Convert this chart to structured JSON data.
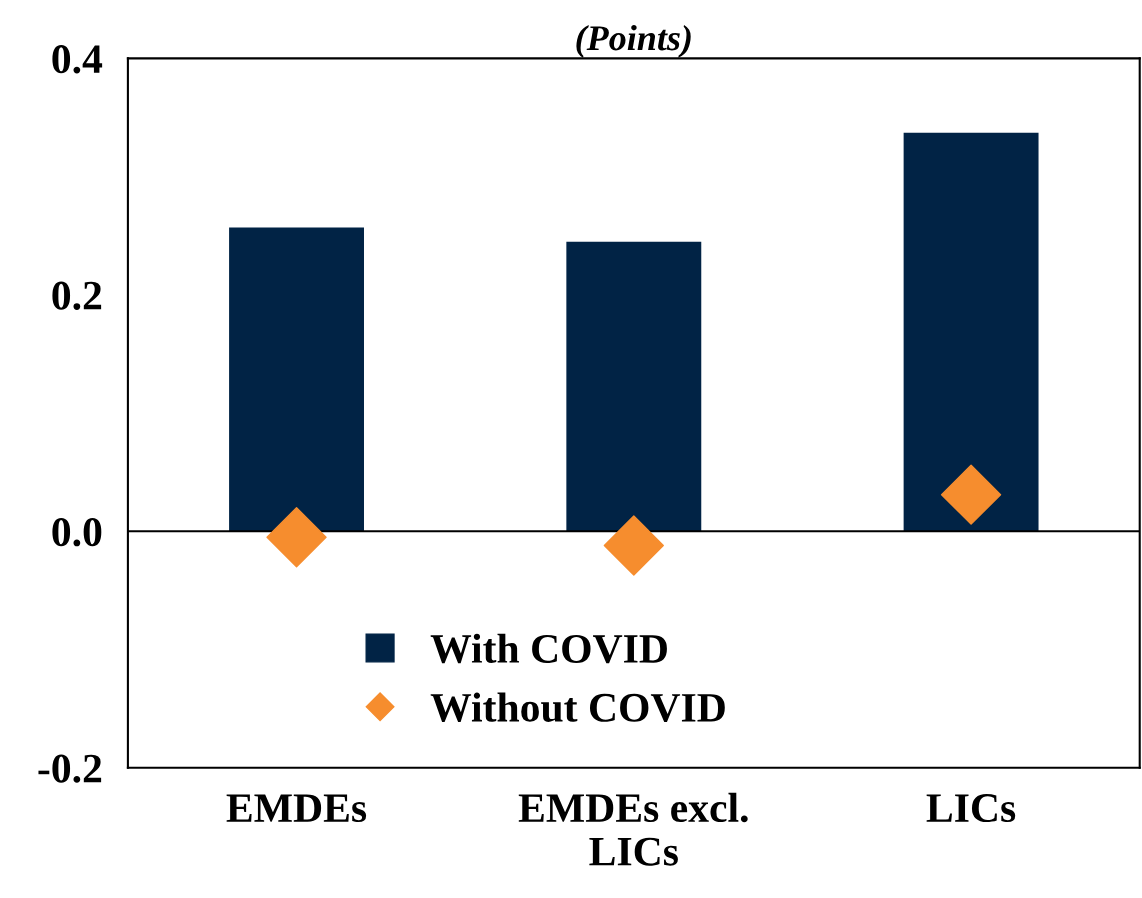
{
  "chart_data": {
    "type": "bar",
    "title": "(Points)",
    "categories": [
      "EMDEs",
      "EMDEs excl.\nLICs",
      "LICs"
    ],
    "series": [
      {
        "name": "With COVID",
        "color": "#012345",
        "values": [
          0.257,
          0.245,
          0.337
        ]
      },
      {
        "name": "Without COVID",
        "type": "scatter",
        "color": "#f68d2e",
        "values": [
          -0.005,
          -0.012,
          0.031
        ]
      }
    ],
    "ylim": [
      -0.2,
      0.4
    ],
    "yticks": [
      {
        "value": -0.2,
        "label": "-0.2"
      },
      {
        "value": 0,
        "label": "0.0"
      },
      0.2,
      0.4
    ],
    "ref_lines": [
      {
        "axis": "y",
        "value": 0,
        "color": "#000000"
      }
    ],
    "marker": "diamond",
    "grid": false,
    "legend": "bottom"
  }
}
